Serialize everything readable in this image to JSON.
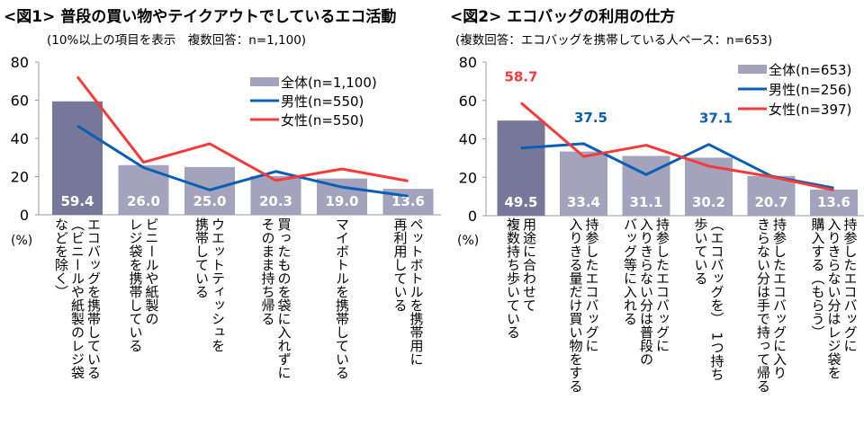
{
  "chart_data": [
    {
      "type": "bar+line",
      "title": "<図1> 普段の買い物やテイクアウトでしているエコ活動",
      "subtitle": "(10%以上の項目を表示　複数回答：n=1,100)",
      "ylabel": "(%)",
      "ylim": [
        0,
        80
      ],
      "yticks": [
        0,
        20,
        40,
        60,
        80
      ],
      "grid": false,
      "legend": "top-right",
      "categories": [
        [
          "エコバッグを携帯している",
          "（ビニールや紙製のレジ袋",
          "などを除く）"
        ],
        [
          "ビニールや紙製の",
          "レジ袋を携帯している"
        ],
        [
          "ウエットティッシュを",
          "携帯している"
        ],
        [
          "買ったものを袋に入れずに",
          "そのまま持ち帰る"
        ],
        [
          "マイボトルを携帯している"
        ],
        [
          "ペットボトルを携帯用に",
          "再利用している"
        ]
      ],
      "series": [
        {
          "name": "全体(n=1,100)",
          "kind": "bar",
          "color": "#a3a3bd",
          "highlight": "#77779a",
          "values": [
            59.4,
            26.0,
            25.0,
            20.3,
            19.0,
            13.6
          ],
          "labels": [
            "59.4",
            "26.0",
            "25.0",
            "20.3",
            "19.0",
            "13.6"
          ]
        },
        {
          "name": "男性(n=550)",
          "kind": "line",
          "color": "#0a5fb4",
          "values": [
            46.6,
            24.7,
            13.0,
            22.7,
            14.5,
            9.8
          ]
        },
        {
          "name": "女性(n=550)",
          "kind": "line",
          "color": "#f53a3a",
          "values": [
            72.3,
            27.5,
            37.2,
            18.0,
            24.0,
            17.7
          ]
        }
      ],
      "annotations": []
    },
    {
      "type": "bar+line",
      "title": "<図2> エコバッグの利用の仕方",
      "subtitle": "(複数回答：エコバッグを携帯している人ベース：n=653)",
      "ylabel": "(%)",
      "ylim": [
        0,
        80
      ],
      "yticks": [
        0,
        20,
        40,
        60,
        80
      ],
      "grid": false,
      "legend": "top-right",
      "categories": [
        [
          "用途に合わせて",
          "複数持ち歩いている"
        ],
        [
          "持参したエコバッグに",
          "入りきる量だけ買い物をする"
        ],
        [
          "持参したエコバッグに",
          "入りきらない分は普段の",
          "バッグ等に入れる"
        ],
        [
          "（エコバッグを）　1つ持ち",
          "歩いている"
        ],
        [
          "持参したエコバッグに入り",
          "きらない分は手で持って帰る"
        ],
        [
          "持参したエコバッグに",
          "入りきらない分はレジ袋を",
          "購入する（もらう）"
        ]
      ],
      "series": [
        {
          "name": "全体(n=653)",
          "kind": "bar",
          "color": "#a3a3bd",
          "highlight": "#77779a",
          "values": [
            49.5,
            33.4,
            31.1,
            30.2,
            20.7,
            13.6
          ],
          "labels": [
            "49.5",
            "33.4",
            "31.1",
            "30.2",
            "20.7",
            "13.6"
          ]
        },
        {
          "name": "男性(n=256)",
          "kind": "line",
          "color": "#0a5fb4",
          "values": [
            35.2,
            37.5,
            21.4,
            37.1,
            20.6,
            14.4
          ]
        },
        {
          "name": "女性(n=397)",
          "kind": "line",
          "color": "#f53a3a",
          "values": [
            58.7,
            30.8,
            36.7,
            25.8,
            20.3,
            13.3
          ]
        }
      ],
      "annotations": [
        {
          "series": 2,
          "index": 0,
          "text": "58.7"
        },
        {
          "series": 1,
          "index": 1,
          "text": "37.5"
        },
        {
          "series": 1,
          "index": 3,
          "text": "37.1"
        }
      ]
    }
  ]
}
